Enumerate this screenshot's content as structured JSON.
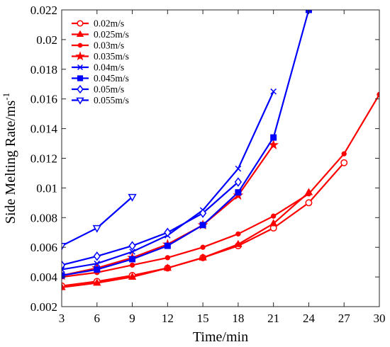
{
  "chart_data": {
    "type": "line",
    "title": "",
    "xlabel": "Time/min",
    "ylabel": "Side Melting Rate/ms",
    "ylabel_superscript": "-1",
    "xlim": [
      3,
      30
    ],
    "ylim": [
      0.002,
      0.022
    ],
    "xticks": [
      "3",
      "6",
      "9",
      "12",
      "15",
      "18",
      "21",
      "24",
      "27",
      "30"
    ],
    "yticks": [
      "0.002",
      "0.004",
      "0.006",
      "0.008",
      "0.01",
      "0.012",
      "0.014",
      "0.016",
      "0.018",
      "0.02",
      "0.022"
    ],
    "grid": false,
    "legend_position": "top-left",
    "series": [
      {
        "name": "0.02m/s",
        "color": "#ff0000",
        "marker": "circle-open",
        "x": [
          3,
          6,
          9,
          12,
          15,
          18,
          21,
          24,
          27
        ],
        "y": [
          0.0034,
          0.0037,
          0.0041,
          0.0046,
          0.0053,
          0.0061,
          0.0073,
          0.009,
          0.0117
        ]
      },
      {
        "name": "0.025m/s",
        "color": "#ff0000",
        "marker": "triangle-up",
        "x": [
          3,
          6,
          9,
          12,
          15,
          18,
          21,
          24
        ],
        "y": [
          0.0033,
          0.0036,
          0.004,
          0.0046,
          0.0053,
          0.0062,
          0.0076,
          0.0097
        ]
      },
      {
        "name": "0.03m/s",
        "color": "#ff0000",
        "marker": "dot",
        "x": [
          3,
          6,
          9,
          12,
          15,
          18,
          21,
          24,
          27,
          30
        ],
        "y": [
          0.004,
          0.0043,
          0.0048,
          0.0053,
          0.006,
          0.0069,
          0.0081,
          0.0096,
          0.0123,
          0.0163
        ]
      },
      {
        "name": "0.035m/s",
        "color": "#ff0000",
        "marker": "star",
        "x": [
          3,
          6,
          9,
          12,
          15,
          18,
          21
        ],
        "y": [
          0.0041,
          0.0046,
          0.0053,
          0.0062,
          0.0075,
          0.0095,
          0.0129
        ]
      },
      {
        "name": "0.04m/s",
        "color": "#0000ff",
        "marker": "x",
        "x": [
          3,
          6,
          9,
          12,
          15,
          18,
          21
        ],
        "y": [
          0.0045,
          0.0049,
          0.0057,
          0.0068,
          0.0085,
          0.0113,
          0.0165
        ]
      },
      {
        "name": "0.045m/s",
        "color": "#0000ff",
        "marker": "square",
        "x": [
          3,
          6,
          9,
          12,
          15,
          18,
          21,
          24
        ],
        "y": [
          0.0041,
          0.0045,
          0.0052,
          0.0061,
          0.0075,
          0.0097,
          0.0134,
          0.022
        ]
      },
      {
        "name": "0.05m/s",
        "color": "#0000ff",
        "marker": "diamond-open",
        "x": [
          3,
          6,
          9,
          12,
          15,
          18
        ],
        "y": [
          0.0048,
          0.0054,
          0.0061,
          0.007,
          0.0083,
          0.0104
        ]
      },
      {
        "name": "0.055m/s",
        "color": "#0000ff",
        "marker": "triangle-down-open",
        "x": [
          3,
          6,
          9
        ],
        "y": [
          0.0061,
          0.0073,
          0.0094
        ]
      }
    ]
  }
}
